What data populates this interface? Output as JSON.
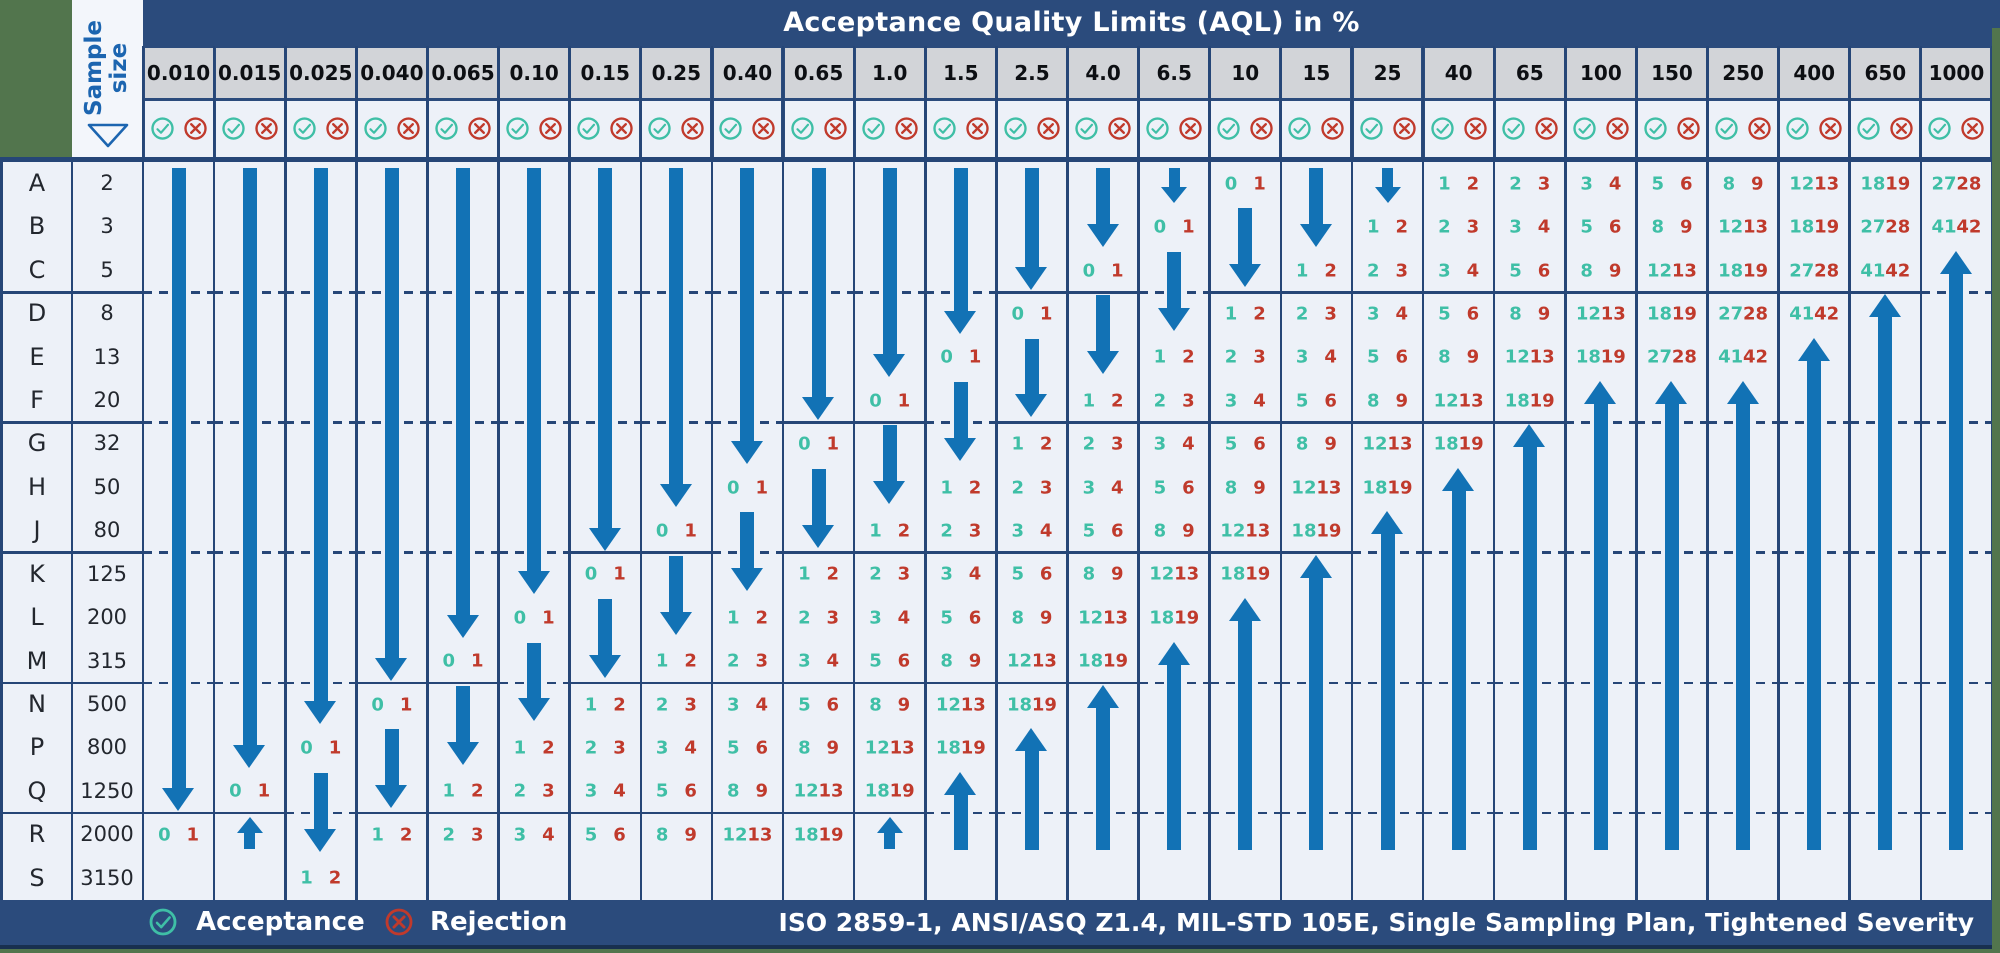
{
  "chart_data": {
    "type": "table",
    "title": "Acceptance Quality Limits (AQL) in %",
    "sample_size_label": "Sample size",
    "legend": {
      "acceptance": "Acceptance",
      "rejection": "Rejection"
    },
    "standards_note": "ISO 2859-1, ANSI/ASQ Z1.4, MIL-STD 105E, Single Sampling Plan, Tightened Severity",
    "rows": [
      {
        "code": "A",
        "size": "2"
      },
      {
        "code": "B",
        "size": "3"
      },
      {
        "code": "C",
        "size": "5"
      },
      {
        "code": "D",
        "size": "8"
      },
      {
        "code": "E",
        "size": "13"
      },
      {
        "code": "F",
        "size": "20"
      },
      {
        "code": "G",
        "size": "32"
      },
      {
        "code": "H",
        "size": "50"
      },
      {
        "code": "J",
        "size": "80"
      },
      {
        "code": "K",
        "size": "125"
      },
      {
        "code": "L",
        "size": "200"
      },
      {
        "code": "M",
        "size": "315"
      },
      {
        "code": "N",
        "size": "500"
      },
      {
        "code": "P",
        "size": "800"
      },
      {
        "code": "Q",
        "size": "1250"
      },
      {
        "code": "R",
        "size": "2000"
      },
      {
        "code": "S",
        "size": "3150"
      }
    ],
    "group_breaks_after": [
      "C",
      "F",
      "J",
      "M",
      "Q"
    ],
    "aql_columns": [
      {
        "aql": "0.010",
        "pairs": {
          "R": [
            0,
            1
          ]
        },
        "arrows": [
          {
            "from": "A",
            "to": "Q",
            "dir": "down"
          }
        ]
      },
      {
        "aql": "0.015",
        "pairs": {
          "Q": [
            0,
            1
          ]
        },
        "arrows": [
          {
            "from": "A",
            "to": "P",
            "dir": "down"
          },
          {
            "from": "R",
            "to": "R",
            "dir": "up"
          }
        ]
      },
      {
        "aql": "0.025",
        "pairs": {
          "P": [
            0,
            1
          ],
          "S": [
            1,
            2
          ]
        },
        "arrows": [
          {
            "from": "A",
            "to": "N",
            "dir": "down"
          },
          {
            "from": "Q",
            "to": "R",
            "dir": "down"
          }
        ]
      },
      {
        "aql": "0.040",
        "pairs": {
          "N": [
            0,
            1
          ],
          "R": [
            1,
            2
          ]
        },
        "arrows": [
          {
            "from": "A",
            "to": "M",
            "dir": "down"
          },
          {
            "from": "P",
            "to": "Q",
            "dir": "down"
          }
        ]
      },
      {
        "aql": "0.065",
        "pairs": {
          "M": [
            0,
            1
          ],
          "Q": [
            1,
            2
          ],
          "R": [
            2,
            3
          ]
        },
        "arrows": [
          {
            "from": "A",
            "to": "L",
            "dir": "down"
          },
          {
            "from": "N",
            "to": "P",
            "dir": "down"
          }
        ]
      },
      {
        "aql": "0.10",
        "pairs": {
          "L": [
            0,
            1
          ],
          "P": [
            1,
            2
          ],
          "Q": [
            2,
            3
          ],
          "R": [
            3,
            4
          ]
        },
        "arrows": [
          {
            "from": "A",
            "to": "K",
            "dir": "down"
          },
          {
            "from": "M",
            "to": "N",
            "dir": "down"
          }
        ]
      },
      {
        "aql": "0.15",
        "pairs": {
          "K": [
            0,
            1
          ],
          "N": [
            1,
            2
          ],
          "P": [
            2,
            3
          ],
          "Q": [
            3,
            4
          ],
          "R": [
            5,
            6
          ]
        },
        "arrows": [
          {
            "from": "A",
            "to": "J",
            "dir": "down"
          },
          {
            "from": "L",
            "to": "M",
            "dir": "down"
          }
        ]
      },
      {
        "aql": "0.25",
        "pairs": {
          "J": [
            0,
            1
          ],
          "M": [
            1,
            2
          ],
          "N": [
            2,
            3
          ],
          "P": [
            3,
            4
          ],
          "Q": [
            5,
            6
          ],
          "R": [
            8,
            9
          ]
        },
        "arrows": [
          {
            "from": "A",
            "to": "H",
            "dir": "down"
          },
          {
            "from": "K",
            "to": "L",
            "dir": "down"
          }
        ]
      },
      {
        "aql": "0.40",
        "pairs": {
          "H": [
            0,
            1
          ],
          "L": [
            1,
            2
          ],
          "M": [
            2,
            3
          ],
          "N": [
            3,
            4
          ],
          "P": [
            5,
            6
          ],
          "Q": [
            8,
            9
          ],
          "R": [
            12,
            13
          ]
        },
        "arrows": [
          {
            "from": "A",
            "to": "G",
            "dir": "down"
          },
          {
            "from": "J",
            "to": "K",
            "dir": "down"
          }
        ]
      },
      {
        "aql": "0.65",
        "pairs": {
          "G": [
            0,
            1
          ],
          "K": [
            1,
            2
          ],
          "L": [
            2,
            3
          ],
          "M": [
            3,
            4
          ],
          "N": [
            5,
            6
          ],
          "P": [
            8,
            9
          ],
          "Q": [
            12,
            13
          ],
          "R": [
            18,
            19
          ]
        },
        "arrows": [
          {
            "from": "A",
            "to": "F",
            "dir": "down"
          },
          {
            "from": "H",
            "to": "J",
            "dir": "down"
          }
        ]
      },
      {
        "aql": "1.0",
        "pairs": {
          "F": [
            0,
            1
          ],
          "J": [
            1,
            2
          ],
          "K": [
            2,
            3
          ],
          "L": [
            3,
            4
          ],
          "M": [
            5,
            6
          ],
          "N": [
            8,
            9
          ],
          "P": [
            12,
            13
          ],
          "Q": [
            18,
            19
          ]
        },
        "arrows": [
          {
            "from": "A",
            "to": "E",
            "dir": "down"
          },
          {
            "from": "G",
            "to": "H",
            "dir": "down"
          },
          {
            "from": "R",
            "to": "R",
            "dir": "up"
          }
        ]
      },
      {
        "aql": "1.5",
        "pairs": {
          "E": [
            0,
            1
          ],
          "H": [
            1,
            2
          ],
          "J": [
            2,
            3
          ],
          "K": [
            3,
            4
          ],
          "L": [
            5,
            6
          ],
          "M": [
            8,
            9
          ],
          "N": [
            12,
            13
          ],
          "P": [
            18,
            19
          ]
        },
        "arrows": [
          {
            "from": "A",
            "to": "D",
            "dir": "down"
          },
          {
            "from": "F",
            "to": "G",
            "dir": "down"
          },
          {
            "from": "Q",
            "to": "R",
            "dir": "up"
          }
        ]
      },
      {
        "aql": "2.5",
        "pairs": {
          "D": [
            0,
            1
          ],
          "G": [
            1,
            2
          ],
          "H": [
            2,
            3
          ],
          "J": [
            3,
            4
          ],
          "K": [
            5,
            6
          ],
          "L": [
            8,
            9
          ],
          "M": [
            12,
            13
          ],
          "N": [
            18,
            19
          ]
        },
        "arrows": [
          {
            "from": "A",
            "to": "C",
            "dir": "down"
          },
          {
            "from": "E",
            "to": "F",
            "dir": "down"
          },
          {
            "from": "P",
            "to": "R",
            "dir": "up"
          }
        ]
      },
      {
        "aql": "4.0",
        "pairs": {
          "C": [
            0,
            1
          ],
          "F": [
            1,
            2
          ],
          "G": [
            2,
            3
          ],
          "H": [
            3,
            4
          ],
          "J": [
            5,
            6
          ],
          "K": [
            8,
            9
          ],
          "L": [
            12,
            13
          ],
          "M": [
            18,
            19
          ]
        },
        "arrows": [
          {
            "from": "A",
            "to": "B",
            "dir": "down"
          },
          {
            "from": "D",
            "to": "E",
            "dir": "down"
          },
          {
            "from": "N",
            "to": "R",
            "dir": "up"
          }
        ]
      },
      {
        "aql": "6.5",
        "pairs": {
          "B": [
            0,
            1
          ],
          "E": [
            1,
            2
          ],
          "F": [
            2,
            3
          ],
          "G": [
            3,
            4
          ],
          "H": [
            5,
            6
          ],
          "J": [
            8,
            9
          ],
          "K": [
            12,
            13
          ],
          "L": [
            18,
            19
          ]
        },
        "arrows": [
          {
            "from": "A",
            "to": "A",
            "dir": "down"
          },
          {
            "from": "C",
            "to": "D",
            "dir": "down"
          },
          {
            "from": "M",
            "to": "R",
            "dir": "up"
          }
        ]
      },
      {
        "aql": "10",
        "pairs": {
          "A": [
            0,
            1
          ],
          "D": [
            1,
            2
          ],
          "E": [
            2,
            3
          ],
          "F": [
            3,
            4
          ],
          "G": [
            5,
            6
          ],
          "H": [
            8,
            9
          ],
          "J": [
            12,
            13
          ],
          "K": [
            18,
            19
          ]
        },
        "arrows": [
          {
            "from": "B",
            "to": "C",
            "dir": "down"
          },
          {
            "from": "L",
            "to": "R",
            "dir": "up"
          }
        ]
      },
      {
        "aql": "15",
        "pairs": {
          "C": [
            1,
            2
          ],
          "D": [
            2,
            3
          ],
          "E": [
            3,
            4
          ],
          "F": [
            5,
            6
          ],
          "G": [
            8,
            9
          ],
          "H": [
            12,
            13
          ],
          "J": [
            18,
            19
          ]
        },
        "arrows": [
          {
            "from": "A",
            "to": "B",
            "dir": "down"
          },
          {
            "from": "K",
            "to": "R",
            "dir": "up"
          }
        ]
      },
      {
        "aql": "25",
        "pairs": {
          "B": [
            1,
            2
          ],
          "C": [
            2,
            3
          ],
          "D": [
            3,
            4
          ],
          "E": [
            5,
            6
          ],
          "F": [
            8,
            9
          ],
          "G": [
            12,
            13
          ],
          "H": [
            18,
            19
          ]
        },
        "arrows": [
          {
            "from": "A",
            "to": "A",
            "dir": "down"
          },
          {
            "from": "J",
            "to": "R",
            "dir": "up"
          }
        ]
      },
      {
        "aql": "40",
        "pairs": {
          "A": [
            1,
            2
          ],
          "B": [
            2,
            3
          ],
          "C": [
            3,
            4
          ],
          "D": [
            5,
            6
          ],
          "E": [
            8,
            9
          ],
          "F": [
            12,
            13
          ],
          "G": [
            18,
            19
          ]
        },
        "arrows": [
          {
            "from": "H",
            "to": "R",
            "dir": "up"
          }
        ]
      },
      {
        "aql": "65",
        "pairs": {
          "A": [
            2,
            3
          ],
          "B": [
            3,
            4
          ],
          "C": [
            5,
            6
          ],
          "D": [
            8,
            9
          ],
          "E": [
            12,
            13
          ],
          "F": [
            18,
            19
          ]
        },
        "arrows": [
          {
            "from": "G",
            "to": "R",
            "dir": "up"
          }
        ]
      },
      {
        "aql": "100",
        "pairs": {
          "A": [
            3,
            4
          ],
          "B": [
            5,
            6
          ],
          "C": [
            8,
            9
          ],
          "D": [
            12,
            13
          ],
          "E": [
            18,
            19
          ]
        },
        "arrows": [
          {
            "from": "F",
            "to": "R",
            "dir": "up"
          }
        ]
      },
      {
        "aql": "150",
        "pairs": {
          "A": [
            5,
            6
          ],
          "B": [
            8,
            9
          ],
          "C": [
            12,
            13
          ],
          "D": [
            18,
            19
          ],
          "E": [
            27,
            28
          ]
        },
        "arrows": [
          {
            "from": "F",
            "to": "R",
            "dir": "up"
          }
        ]
      },
      {
        "aql": "250",
        "pairs": {
          "A": [
            8,
            9
          ],
          "B": [
            12,
            13
          ],
          "C": [
            18,
            19
          ],
          "D": [
            27,
            28
          ],
          "E": [
            41,
            42
          ]
        },
        "arrows": [
          {
            "from": "F",
            "to": "R",
            "dir": "up"
          }
        ]
      },
      {
        "aql": "400",
        "pairs": {
          "A": [
            12,
            13
          ],
          "B": [
            18,
            19
          ],
          "C": [
            27,
            28
          ],
          "D": [
            41,
            42
          ]
        },
        "arrows": [
          {
            "from": "E",
            "to": "R",
            "dir": "up"
          }
        ]
      },
      {
        "aql": "650",
        "pairs": {
          "A": [
            18,
            19
          ],
          "B": [
            27,
            28
          ],
          "C": [
            41,
            42
          ]
        },
        "arrows": [
          {
            "from": "D",
            "to": "R",
            "dir": "up"
          }
        ]
      },
      {
        "aql": "1000",
        "pairs": {
          "A": [
            27,
            28
          ],
          "B": [
            41,
            42
          ]
        },
        "arrows": [
          {
            "from": "C",
            "to": "R",
            "dir": "up"
          }
        ]
      }
    ],
    "colors": {
      "navy": "#2B4B7C",
      "border_line": "#264677",
      "light_bg": "#EDF1F8",
      "panel_bg": "#F3F6FB",
      "header_grey": "#D2D4D8",
      "green": "#52754D",
      "acceptance_teal": "#3FBFA6",
      "rejection_red": "#C03A2C",
      "arrow_blue": "#1272B5",
      "label_blue": "#1C65B0",
      "dark_strip": "#18304F"
    }
  }
}
